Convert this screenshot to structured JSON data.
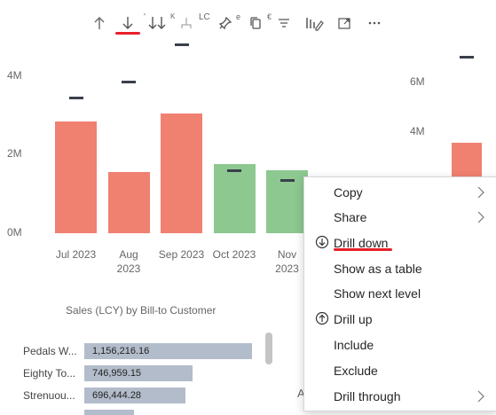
{
  "toolbar": {
    "icons": [
      "arrow-up-icon",
      "arrow-down-icon",
      "double-arrow-down-icon",
      "expand-hierarchy-icon",
      "pin-icon",
      "copy-visual-icon",
      "filter-icon",
      "format-visual-icon",
      "focus-mode-icon",
      "more-options-icon"
    ],
    "fragments": [
      "'",
      "K",
      "LC",
      "e",
      "€"
    ],
    "highlight_color": "#e8202a"
  },
  "chart_data": [
    {
      "type": "bar",
      "categories": [
        "Jul 2023",
        "Aug 2023",
        "Sep 2023",
        "Oct 2023",
        "Nov 2023"
      ],
      "values": [
        2.85,
        1.55,
        3.05,
        1.75,
        1.6
      ],
      "targets": [
        3.45,
        3.85,
        4.8,
        1.6,
        1.35
      ],
      "colors": [
        "#f08070",
        "#f08070",
        "#f08070",
        "#8cc890",
        "#8cc890"
      ],
      "ylim": [
        0,
        4.8
      ],
      "yticks": [
        "0M",
        "2M",
        "4M"
      ],
      "ytick_values": [
        0,
        2,
        4
      ],
      "y_unit": "M",
      "grid": false
    },
    {
      "type": "bar",
      "categories": [
        ""
      ],
      "values": [
        3.6
      ],
      "targets": [
        7.0
      ],
      "colors": [
        "#f08070"
      ],
      "ylim": [
        0,
        7.5
      ],
      "yticks": [
        "4M",
        "6M"
      ],
      "ytick_values": [
        4,
        6
      ],
      "y_unit": "M",
      "grid": false
    },
    {
      "type": "bar",
      "orientation": "horizontal",
      "title": "Sales (LCY) by Bill-to Customer",
      "categories": [
        "Pedals W...",
        "Eighty To...",
        "Strenuou..."
      ],
      "values": [
        1156216.16,
        746959.15,
        696444.28
      ],
      "value_labels": [
        "1,156,216.16",
        "746,959.15",
        "696,444.28"
      ],
      "bar_color": "#b3bccb",
      "xlim": [
        0,
        1300000
      ]
    }
  ],
  "context_menu": {
    "items": [
      {
        "label": "Copy",
        "icon": "",
        "submenu": true
      },
      {
        "label": "Share",
        "icon": "",
        "submenu": true
      },
      {
        "label": "Drill down",
        "icon": "drill-down-icon",
        "submenu": false,
        "highlighted": true
      },
      {
        "label": "Show as a table",
        "icon": "",
        "submenu": false
      },
      {
        "label": "Show next level",
        "icon": "",
        "submenu": false
      },
      {
        "label": "Drill up",
        "icon": "drill-up-icon",
        "submenu": false
      },
      {
        "label": "Include",
        "icon": "",
        "submenu": false
      },
      {
        "label": "Exclude",
        "icon": "",
        "submenu": false
      },
      {
        "label": "Drill through",
        "icon": "",
        "submenu": true
      }
    ]
  },
  "partial_text": "A"
}
